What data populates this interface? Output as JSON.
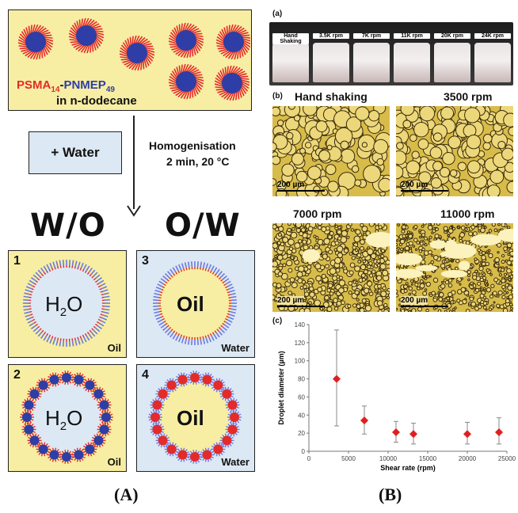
{
  "panelA": {
    "top_box": {
      "polymer_prefix": "PSMA",
      "polymer_prefix_sub": "14",
      "polymer_dash": "-",
      "polymer_suffix": "PNMEP",
      "polymer_suffix_sub": "49",
      "solvent": "in n-dodecane"
    },
    "water_box": "+ Water",
    "homog_line1": "Homogenisation",
    "homog_line2": "2 min, 20 °C",
    "wo": "W/O",
    "ow": "O/W",
    "cells": [
      {
        "num": "1",
        "center": "H",
        "center_sub": "2",
        "center_tail": "O",
        "corner": "Oil"
      },
      {
        "num": "3",
        "center": "Oil",
        "corner": "Water"
      },
      {
        "num": "2",
        "center": "H",
        "center_sub": "2",
        "center_tail": "O",
        "corner": "Oil"
      },
      {
        "num": "4",
        "center": "Oil",
        "corner": "Water"
      }
    ],
    "label": "(A)",
    "colors": {
      "red": "#e32b2b",
      "blue": "#2e3ea6",
      "yellow": "#f7eea3",
      "lightblue": "#dce8f3"
    }
  },
  "panelB": {
    "a_label": "(a)",
    "bottles": [
      "Hand Shaking",
      "3.5K rpm",
      "7K rpm",
      "11K rpm",
      "20K rpm",
      "24K rpm"
    ],
    "b_label": "(b)",
    "micro_titles": [
      "Hand shaking",
      "3500 rpm",
      "7000 rpm",
      "11000 rpm"
    ],
    "scalebar": "200 µm",
    "c_label": "(c)",
    "label": "(B)"
  },
  "chart_data": {
    "type": "scatter",
    "xlabel": "Shear rate (rpm)",
    "ylabel": "Droplet diameter (µm)",
    "xlim": [
      0,
      25000
    ],
    "ylim": [
      0,
      140
    ],
    "xticks": [
      0,
      5000,
      10000,
      15000,
      20000,
      25000
    ],
    "yticks": [
      0,
      20,
      40,
      60,
      80,
      100,
      120,
      140
    ],
    "points": [
      {
        "x": 3500,
        "y": 80,
        "err_low": 28,
        "err_high": 134
      },
      {
        "x": 7000,
        "y": 34,
        "err_low": 19,
        "err_high": 50
      },
      {
        "x": 11000,
        "y": 21,
        "err_low": 10,
        "err_high": 33
      },
      {
        "x": 13200,
        "y": 19,
        "err_low": 8,
        "err_high": 31
      },
      {
        "x": 20000,
        "y": 19,
        "err_low": 8,
        "err_high": 32
      },
      {
        "x": 24000,
        "y": 21,
        "err_low": 8,
        "err_high": 37
      }
    ]
  }
}
